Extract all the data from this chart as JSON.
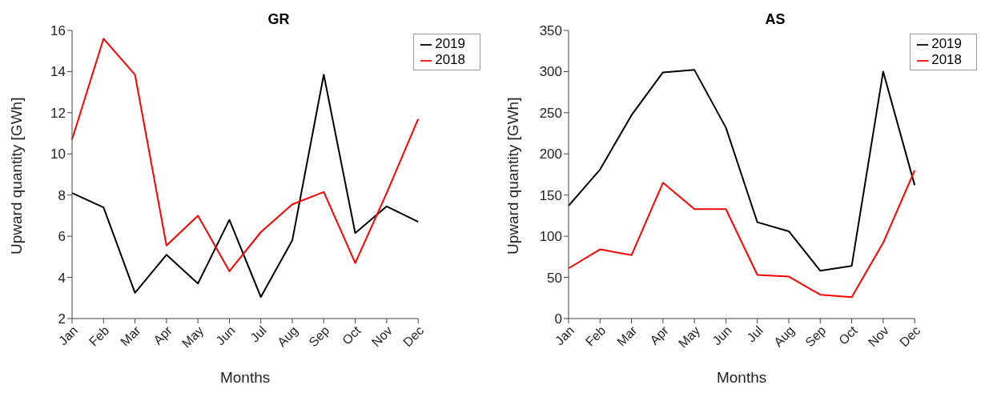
{
  "chart_data": [
    {
      "type": "line",
      "title": "GR",
      "xlabel": "Months",
      "ylabel": "Upward quantity [GWh]",
      "categories": [
        "Jan",
        "Feb",
        "Mar",
        "Apr",
        "May",
        "Jun",
        "Jul",
        "Aug",
        "Sep",
        "Oct",
        "Nov",
        "Dec"
      ],
      "series": [
        {
          "name": "2019",
          "color": "#000000",
          "values": [
            8.1,
            7.4,
            3.25,
            5.1,
            3.7,
            6.8,
            3.05,
            5.8,
            13.85,
            6.15,
            7.45,
            6.7
          ]
        },
        {
          "name": "2018",
          "color": "#ff0000",
          "values": [
            10.7,
            15.6,
            13.85,
            5.55,
            7.0,
            4.3,
            6.2,
            7.55,
            8.15,
            4.7,
            8.1,
            11.7
          ]
        }
      ],
      "ylim": [
        2,
        16
      ],
      "yticks": [
        2,
        4,
        6,
        8,
        10,
        12,
        14,
        16
      ],
      "grid": false,
      "legend": "top right",
      "marker": "none",
      "line_style": "solid"
    },
    {
      "type": "line",
      "title": "AS",
      "xlabel": "Months",
      "ylabel": "Upward quantity [GWh]",
      "categories": [
        "Jan",
        "Feb",
        "Mar",
        "Apr",
        "May",
        "Jun",
        "Jul",
        "Aug",
        "Sep",
        "Oct",
        "Nov",
        "Dec"
      ],
      "series": [
        {
          "name": "2019",
          "color": "#000000",
          "values": [
            137,
            181,
            247,
            299,
            302,
            232,
            117,
            106,
            58,
            64,
            300,
            162
          ]
        },
        {
          "name": "2018",
          "color": "#ff0000",
          "values": [
            61,
            84,
            77,
            165,
            133,
            133,
            53,
            51,
            29,
            26,
            92,
            180
          ]
        }
      ],
      "ylim": [
        0,
        350
      ],
      "yticks": [
        0,
        50,
        100,
        150,
        200,
        250,
        300,
        350
      ],
      "grid": false,
      "legend": "top right",
      "marker": "none",
      "line_style": "solid"
    }
  ]
}
